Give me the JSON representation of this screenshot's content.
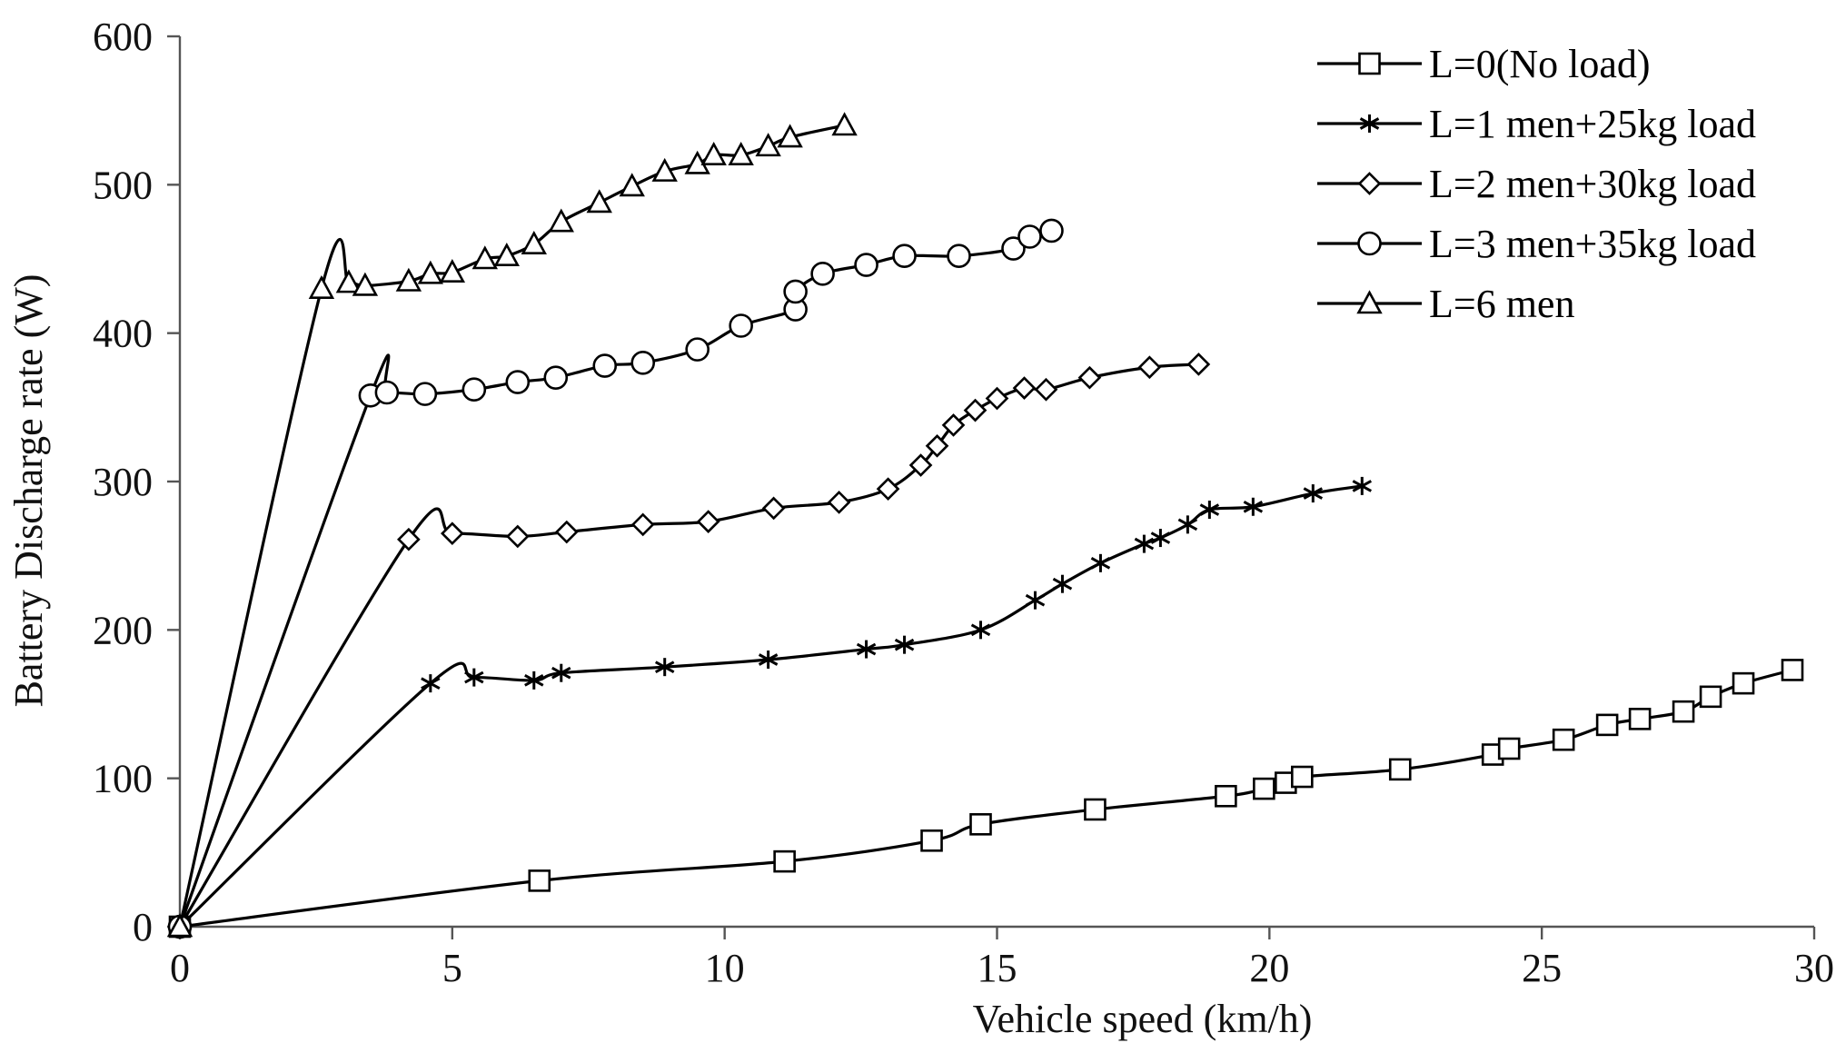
{
  "chart_data": {
    "type": "line",
    "title": "",
    "xlabel": "Vehicle speed (km/h)",
    "ylabel": "Battery Discharge rate (W)",
    "xlim": [
      0,
      30
    ],
    "ylim": [
      0,
      600
    ],
    "xticks": [
      0,
      5,
      10,
      15,
      20,
      25,
      30
    ],
    "yticks": [
      0,
      100,
      200,
      300,
      400,
      500,
      600
    ],
    "grid": false,
    "legend_position": "top-right",
    "series": [
      {
        "name": "L=0(No load)",
        "marker": "square",
        "x": [
          0,
          6.6,
          11.1,
          13.8,
          14.7,
          16.8,
          19.2,
          19.9,
          20.3,
          20.6,
          22.4,
          24.1,
          24.4,
          25.4,
          26.2,
          26.8,
          27.6,
          28.1,
          28.7,
          29.6
        ],
        "y": [
          0,
          31,
          44,
          58,
          69,
          79,
          88,
          93,
          97,
          101,
          106,
          116,
          120,
          126,
          136,
          140,
          145,
          155,
          164,
          173
        ]
      },
      {
        "name": "L=1 men+25kg load",
        "marker": "asterisk",
        "x": [
          0,
          4.6,
          5.4,
          6.5,
          7.0,
          8.9,
          10.8,
          12.6,
          13.3,
          14.7,
          15.7,
          16.2,
          16.9,
          17.7,
          18.0,
          18.5,
          18.9,
          19.7,
          20.8,
          21.7
        ],
        "y": [
          0,
          164,
          168,
          166,
          171,
          175,
          180,
          187,
          190,
          200,
          220,
          231,
          245,
          258,
          262,
          271,
          281,
          283,
          292,
          297
        ]
      },
      {
        "name": "L=2 men+30kg load",
        "marker": "diamond",
        "x": [
          0,
          4.2,
          5.0,
          6.2,
          7.1,
          8.5,
          9.7,
          10.9,
          12.1,
          13.0,
          13.6,
          13.9,
          14.2,
          14.6,
          15.0,
          15.5,
          15.9,
          16.7,
          17.8,
          18.7
        ],
        "y": [
          0,
          261,
          265,
          263,
          266,
          271,
          273,
          282,
          286,
          295,
          311,
          324,
          338,
          348,
          356,
          363,
          362,
          370,
          377,
          379
        ]
      },
      {
        "name": "L=3 men+35kg load",
        "marker": "circle",
        "x": [
          0,
          3.5,
          3.8,
          4.5,
          5.4,
          6.2,
          6.9,
          7.8,
          8.5,
          9.5,
          10.3,
          11.3,
          11.3,
          11.8,
          12.6,
          13.3,
          14.3,
          15.3,
          15.6,
          16.0
        ],
        "y": [
          0,
          358,
          360,
          359,
          362,
          367,
          370,
          378,
          380,
          389,
          405,
          416,
          428,
          440,
          446,
          452,
          452,
          457,
          465,
          469
        ]
      },
      {
        "name": "L=6 men",
        "marker": "triangle",
        "x": [
          0,
          2.6,
          3.1,
          3.4,
          4.2,
          4.6,
          5.0,
          5.6,
          6.0,
          6.5,
          7.0,
          7.7,
          8.3,
          8.9,
          9.5,
          9.8,
          10.3,
          10.8,
          11.2,
          12.2
        ],
        "y": [
          0,
          430,
          434,
          432,
          435,
          440,
          441,
          450,
          452,
          460,
          475,
          488,
          499,
          509,
          514,
          520,
          520,
          526,
          532,
          540
        ]
      }
    ]
  }
}
